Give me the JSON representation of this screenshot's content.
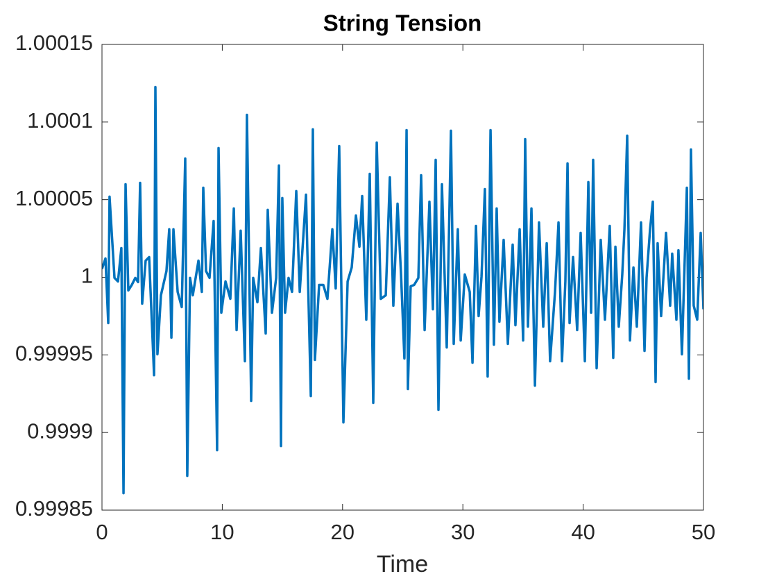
{
  "chart_data": {
    "type": "line",
    "title": "String Tension",
    "xlabel": "Time",
    "color": "#0072bd",
    "line_width": 3.5,
    "box": true,
    "xlim": [
      0,
      50
    ],
    "xticks": [
      0,
      10,
      20,
      30,
      40,
      50
    ],
    "ylim": [
      0.99985,
      1.00015
    ],
    "yticks": [
      0.99985,
      0.9999,
      0.99995,
      1,
      1.00005,
      1.0001,
      1.00015
    ],
    "x": [
      0,
      0.29,
      0.52,
      0.63,
      1.04,
      1.33,
      1.61,
      1.79,
      1.96,
      2.19,
      2.48,
      2.77,
      3.0,
      3.17,
      3.34,
      3.63,
      3.92,
      4.33,
      4.44,
      4.61,
      4.9,
      5.36,
      5.59,
      5.77,
      5.94,
      6.29,
      6.63,
      6.92,
      7.09,
      7.32,
      7.55,
      8.02,
      8.3,
      8.42,
      8.65,
      8.94,
      9.28,
      9.57,
      9.69,
      9.92,
      10.27,
      10.67,
      10.96,
      11.19,
      11.53,
      11.88,
      12.05,
      12.4,
      12.57,
      12.92,
      13.21,
      13.61,
      13.78,
      14.13,
      14.48,
      14.71,
      14.88,
      14.99,
      15.22,
      15.51,
      15.8,
      16.15,
      16.44,
      16.96,
      17.36,
      17.53,
      17.7,
      18.05,
      18.4,
      18.74,
      19.15,
      19.43,
      19.72,
      20.07,
      20.42,
      20.76,
      21.11,
      21.4,
      21.63,
      21.97,
      22.26,
      22.55,
      22.84,
      23.18,
      23.59,
      23.93,
      24.22,
      24.57,
      24.86,
      25.14,
      25.32,
      25.43,
      25.66,
      25.95,
      26.3,
      26.53,
      26.82,
      27.22,
      27.51,
      27.74,
      27.97,
      28.26,
      28.66,
      29.01,
      29.24,
      29.58,
      29.82,
      30.16,
      30.57,
      30.8,
      31.09,
      31.31,
      31.55,
      31.83,
      32.06,
      32.3,
      32.58,
      32.81,
      33.04,
      33.39,
      33.74,
      34.14,
      34.37,
      34.72,
      35.01,
      35.18,
      35.41,
      35.7,
      35.99,
      36.33,
      36.68,
      36.97,
      37.25,
      37.66,
      37.95,
      38.24,
      38.52,
      38.7,
      38.87,
      39.16,
      39.5,
      39.79,
      40.14,
      40.43,
      40.66,
      40.83,
      41.12,
      41.46,
      41.81,
      42.21,
      42.5,
      42.68,
      42.96,
      43.25,
      43.43,
      43.66,
      43.89,
      44.18,
      44.46,
      44.81,
      45.1,
      45.27,
      45.56,
      45.79,
      46.02,
      46.19,
      46.48,
      46.89,
      47.23,
      47.4,
      47.75,
      47.92,
      48.21,
      48.62,
      48.79,
      48.96,
      49.19,
      49.48,
      49.77,
      50
    ],
    "values": [
      1.0000054,
      1.0000121,
      0.9999705,
      1.0000519,
      0.9999996,
      0.9999973,
      1.0000188,
      0.9998609,
      1.0000599,
      0.9999915,
      0.9999951,
      0.9999996,
      0.9999969,
      1.0000608,
      0.999983,
      1.0000107,
      1.000013,
      0.9999369,
      1.0001225,
      0.9999504,
      0.9999884,
      1.000004,
      1.0000309,
      0.9999611,
      1.0000309,
      0.9999906,
      0.9999808,
      1.0000765,
      0.9998721,
      0.9999996,
      0.9999884,
      1.0000107,
      0.9999906,
      1.0000577,
      1.000004,
      0.9999996,
      1.0000362,
      0.9998886,
      1.0000832,
      0.9999772,
      0.9999973,
      0.9999861,
      1.0000443,
      0.999966,
      1.00003,
      0.9999459,
      1.0001046,
      0.9999204,
      0.9999996,
      0.9999839,
      1.0000188,
      0.9999638,
      1.0000434,
      0.9999772,
      0.9999996,
      1.000072,
      0.9998913,
      1.000051,
      0.9999772,
      0.9999996,
      0.9999906,
      1.0000555,
      0.9999906,
      1.0000532,
      0.9999235,
      1.0000953,
      0.9999468,
      0.9999951,
      0.9999951,
      0.9999861,
      1.0000309,
      0.9999928,
      1.0000845,
      0.9999065,
      0.9999973,
      1.0000063,
      1.0000398,
      1.0000197,
      1.0000523,
      0.9999727,
      1.0000666,
      0.9999191,
      1.0000868,
      0.9999861,
      0.9999884,
      1.0000644,
      0.9999817,
      1.0000474,
      1.0000018,
      0.9999477,
      1.0000948,
      0.999928,
      0.9999942,
      0.9999951,
      0.9999996,
      1.0000657,
      0.999966,
      1.0000487,
      0.9999794,
      1.0000756,
      0.9999146,
      1.0000599,
      0.9999548,
      1.0000944,
      0.9999571,
      1.0000309,
      0.9999593,
      1.0000018,
      0.9999906,
      0.999945,
      1.0000331,
      0.999975,
      1.0000004,
      1.0000568,
      0.9999361,
      1.0000948,
      0.9999566,
      1.0000443,
      0.9999714,
      1.0000241,
      0.9999571,
      1.000021,
      0.9999691,
      1.0000309,
      0.9999593,
      1.000089,
      0.9999682,
      1.0000443,
      0.9999302,
      1.0000353,
      0.9999682,
      1.0000219,
      0.9999459,
      0.9999906,
      1.0000353,
      0.9999459,
      0.9999973,
      1.0000733,
      0.9999705,
      1.000013,
      0.999966,
      1.0000286,
      0.9999459,
      1.0000613,
      0.9999772,
      1.0000756,
      0.9999414,
      1.0000241,
      0.9999727,
      1.0000331,
      0.9999481,
      1.0000197,
      0.9999682,
      1.0000018,
      1.0000309,
      1.0000912,
      0.9999593,
      1.0000063,
      0.9999682,
      1.0000353,
      0.9999526,
      0.9999996,
      1.0000309,
      1.0000487,
      0.9999325,
      1.0000219,
      0.999975,
      1.0000286,
      0.9999817,
      1.0000152,
      0.9999727,
      1.0000174,
      0.9999504,
      1.0000577,
      0.9999347,
      1.0000823,
      0.9999817,
      0.9999727,
      1.0000286,
      0.9999794
    ]
  }
}
